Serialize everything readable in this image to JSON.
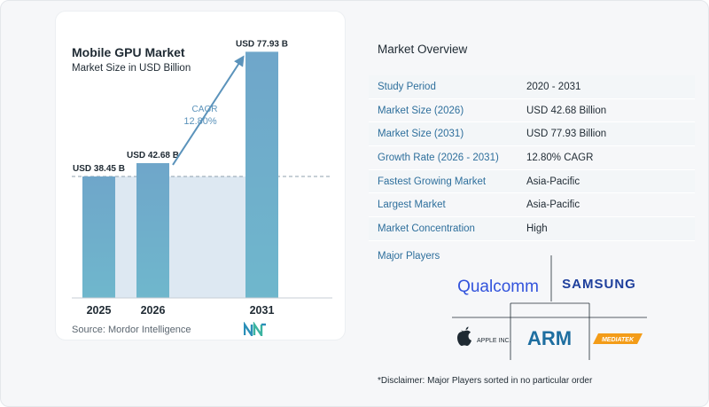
{
  "chart_data": {
    "type": "bar",
    "title": "Mobile GPU Market",
    "subtitle": "Market Size in USD Billion",
    "categories": [
      "2025",
      "2026",
      "2031"
    ],
    "values": [
      38.45,
      42.68,
      77.93
    ],
    "data_labels": [
      "USD 38.45 B",
      "USD 42.68 B",
      "USD 77.93 B"
    ],
    "ylim": [
      0,
      80
    ],
    "cagr_label": "CAGR",
    "cagr_value": "12.80%",
    "colors": {
      "bar_top": "#6da4c8",
      "bar_bottom": "#5b93bb",
      "shade": "#dde8f2",
      "arrow": "#5b93bb",
      "cagr": "#5b93bb"
    }
  },
  "source": "Source: Mordor Intelligence",
  "overview": {
    "title": "Market Overview",
    "rows": [
      {
        "key": "Study Period",
        "value": "2020 - 2031"
      },
      {
        "key": "Market Size (2026)",
        "value": "USD 42.68 Billion"
      },
      {
        "key": "Market Size (2031)",
        "value": "USD 77.93 Billion"
      },
      {
        "key": "Growth Rate (2026 - 2031)",
        "value": "12.80% CAGR"
      },
      {
        "key": "Fastest Growing Market",
        "value": "Asia-Pacific"
      },
      {
        "key": "Largest Market",
        "value": "Asia-Pacific"
      },
      {
        "key": "Market Concentration",
        "value": "High"
      }
    ]
  },
  "players": {
    "label": "Major Players",
    "names": [
      "Qualcomm",
      "SAMSUNG",
      "APPLE INC.",
      "ARM",
      "MEDIATEK"
    ]
  },
  "disclaimer": "*Disclaimer: Major Players sorted in no particular order"
}
